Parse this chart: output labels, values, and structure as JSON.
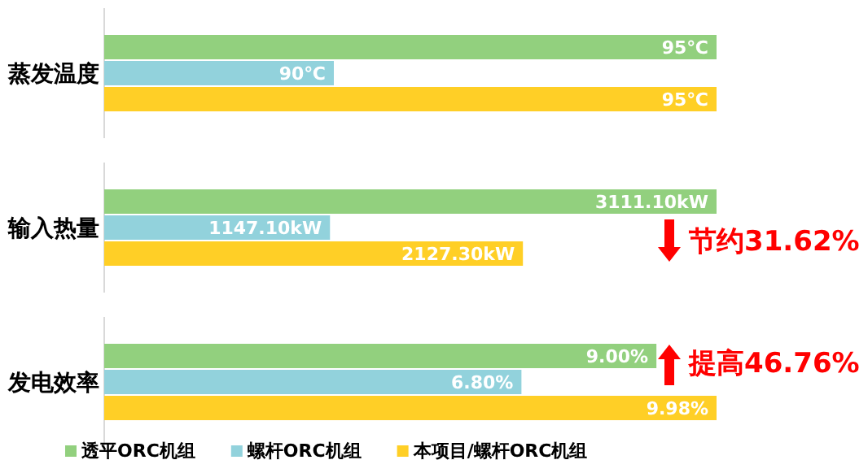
{
  "chart_data": [
    {
      "type": "bar",
      "orientation": "horizontal",
      "categories": [
        "蒸发温度"
      ],
      "xlim": [
        87,
        95
      ],
      "tick_labels": false,
      "series": [
        {
          "color": "#92d07e",
          "values": [
            95
          ],
          "value_labels": [
            "95℃"
          ]
        },
        {
          "color": "#92d2dc",
          "values": [
            90
          ],
          "value_labels": [
            "90℃"
          ]
        },
        {
          "color": "#ffcf26",
          "values": [
            95
          ],
          "value_labels": [
            "95℃"
          ]
        }
      ]
    },
    {
      "type": "bar",
      "orientation": "horizontal",
      "categories": [
        "输入热量"
      ],
      "tick_labels": false,
      "series": [
        {
          "color": "#92d07e",
          "values": [
            3111.1
          ],
          "value_labels": [
            "3111.10kW"
          ]
        },
        {
          "color": "#92d2dc",
          "values": [
            1147.1
          ],
          "value_labels": [
            "1147.10kW"
          ]
        },
        {
          "color": "#ffcf26",
          "values": [
            2127.3
          ],
          "value_labels": [
            "2127.30kW"
          ]
        }
      ],
      "annotations": [
        "节约31.62%"
      ]
    },
    {
      "type": "bar",
      "orientation": "horizontal",
      "categories": [
        "发电效率"
      ],
      "tick_labels": false,
      "legend": "bottom",
      "series": [
        {
          "name": "透平ORC机组",
          "color": "#92d07e",
          "values": [
            9.0
          ],
          "value_labels": [
            "9.00%"
          ]
        },
        {
          "name": "螺杆ORC机组",
          "color": "#92d2dc",
          "values": [
            6.8
          ],
          "value_labels": [
            "6.80%"
          ]
        },
        {
          "name": "本项目/螺杆ORC机组",
          "color": "#ffcf26",
          "values": [
            9.98
          ],
          "value_labels": [
            "9.98%"
          ]
        }
      ],
      "annotations": [
        "提高46.76%"
      ]
    }
  ]
}
